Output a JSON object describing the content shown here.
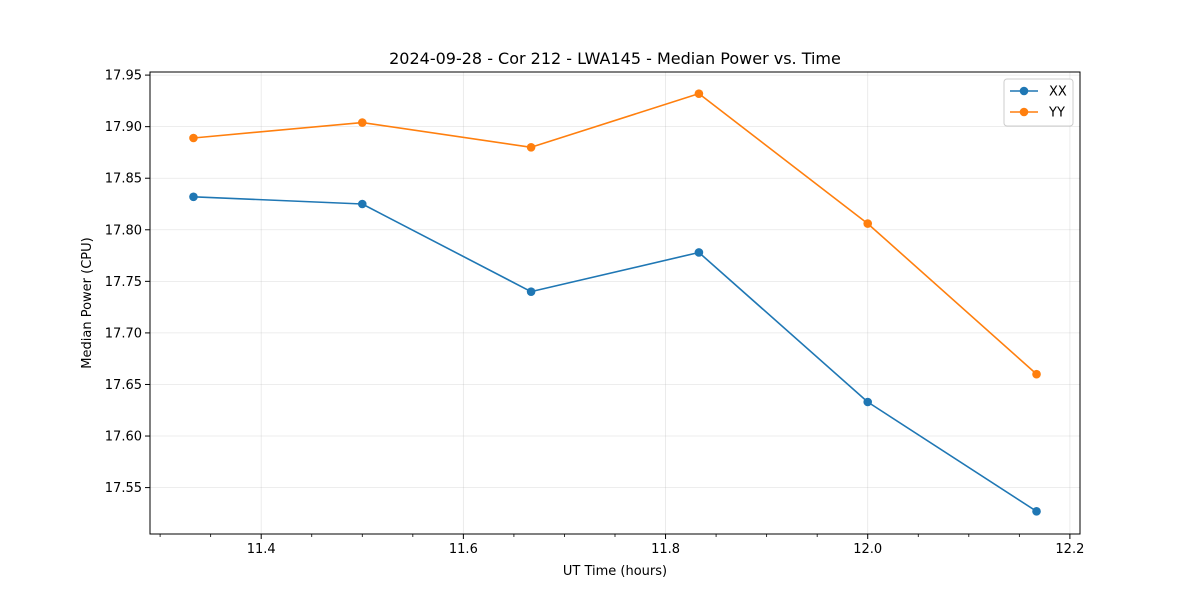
{
  "chart_data": {
    "type": "line",
    "title": "2024-09-28 - Cor 212 - LWA145 - Median Power vs. Time",
    "xlabel": "UT Time (hours)",
    "ylabel": "Median Power (CPU)",
    "xlim": [
      11.29,
      12.21
    ],
    "ylim": [
      17.505,
      17.953
    ],
    "xticks": [
      11.4,
      11.6,
      11.8,
      12.0,
      12.2
    ],
    "xtick_labels": [
      "11.4",
      "11.6",
      "11.8",
      "12.0",
      "12.2"
    ],
    "xminor_step": 0.05,
    "yticks": [
      17.55,
      17.6,
      17.65,
      17.7,
      17.75,
      17.8,
      17.85,
      17.9,
      17.95
    ],
    "ytick_labels": [
      "17.55",
      "17.60",
      "17.65",
      "17.70",
      "17.75",
      "17.80",
      "17.85",
      "17.90",
      "17.95"
    ],
    "grid": true,
    "legend_position": "top-right",
    "x": [
      11.333,
      11.5,
      11.667,
      11.833,
      12.0,
      12.167
    ],
    "series": [
      {
        "name": "XX",
        "color": "#1f77b4",
        "values": [
          17.832,
          17.825,
          17.74,
          17.778,
          17.633,
          17.527
        ]
      },
      {
        "name": "YY",
        "color": "#ff7f0e",
        "values": [
          17.889,
          17.904,
          17.88,
          17.932,
          17.806,
          17.66
        ]
      }
    ]
  }
}
